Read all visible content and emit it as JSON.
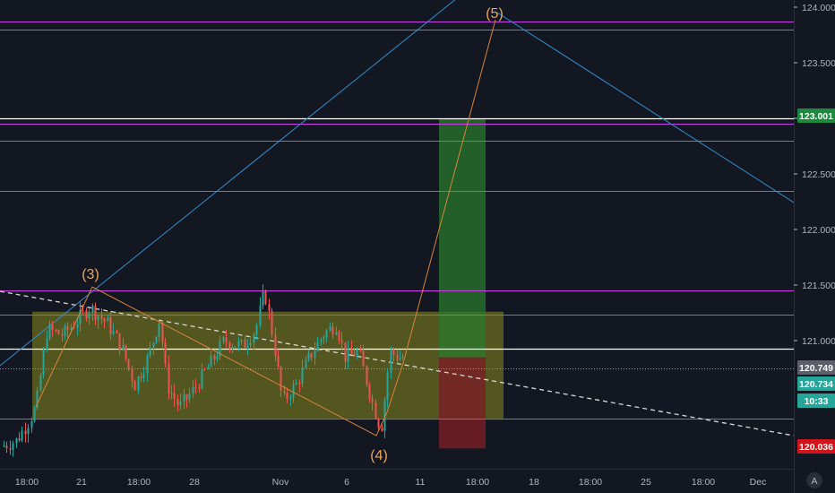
{
  "chart_data": {
    "type": "candlestick",
    "price_axis": {
      "ticks": [
        "124.000",
        "123.500",
        "123.000",
        "122.500",
        "122.000",
        "121.500",
        "121.000"
      ],
      "ylim": [
        119.95,
        124.05
      ]
    },
    "time_axis": {
      "ticks": [
        "18:00",
        "21",
        "18:00",
        "28",
        "Nov",
        "6",
        "11",
        "18:00",
        "18",
        "18:00",
        "25",
        "18:00",
        "Dec"
      ]
    },
    "price_tags": [
      {
        "label": "123.001",
        "value": 123.001,
        "bg": "#1b8a3e",
        "fg": "#ffffff"
      },
      {
        "label": "120.749",
        "value": 120.749,
        "bg": "#5d606b",
        "fg": "#ffffff"
      },
      {
        "label": "120.734",
        "value": 120.734,
        "bg": "#26a69a",
        "fg": "#ffffff"
      },
      {
        "label": "10:33",
        "value": 120.62,
        "bg": "#26a69a",
        "fg": "#ffffff"
      },
      {
        "label": "120.036",
        "value": 120.036,
        "bg": "#d1141a",
        "fg": "#ffffff"
      }
    ],
    "wave_labels": [
      {
        "text": "(3)",
        "x": 0,
        "y": 121.47
      },
      {
        "text": "(4)",
        "x": 0,
        "y": 120.06
      },
      {
        "text": "(5)",
        "x": 0,
        "y": 123.88
      }
    ],
    "horizontal_levels": [
      {
        "value": 123.87,
        "color": "#c940e6"
      },
      {
        "value": 123.8,
        "color": "#c940e6"
      },
      {
        "value": 123.0,
        "color": "#ffffff"
      },
      {
        "value": 122.95,
        "color": "#c940e6"
      },
      {
        "value": 122.8,
        "color": "#c940e6"
      },
      {
        "value": 122.35,
        "color": "#c940e6"
      },
      {
        "value": 121.45,
        "color": "#c940e6"
      },
      {
        "value": 121.23,
        "color": "#c940e6"
      },
      {
        "value": 120.93,
        "color": "#ffffff"
      },
      {
        "value": 120.3,
        "color": "#c940e6"
      }
    ],
    "colors": {
      "background": "#131722",
      "up": "#26a69a",
      "down": "#ef5350",
      "range_box": "#8b8b1e",
      "target_box": "#2a7a2c",
      "stop_box": "#7a1e24",
      "trend_blue": "#2f8fcf",
      "wave_line": "#d9843a"
    }
  },
  "footer": {
    "auto_button": "A"
  }
}
